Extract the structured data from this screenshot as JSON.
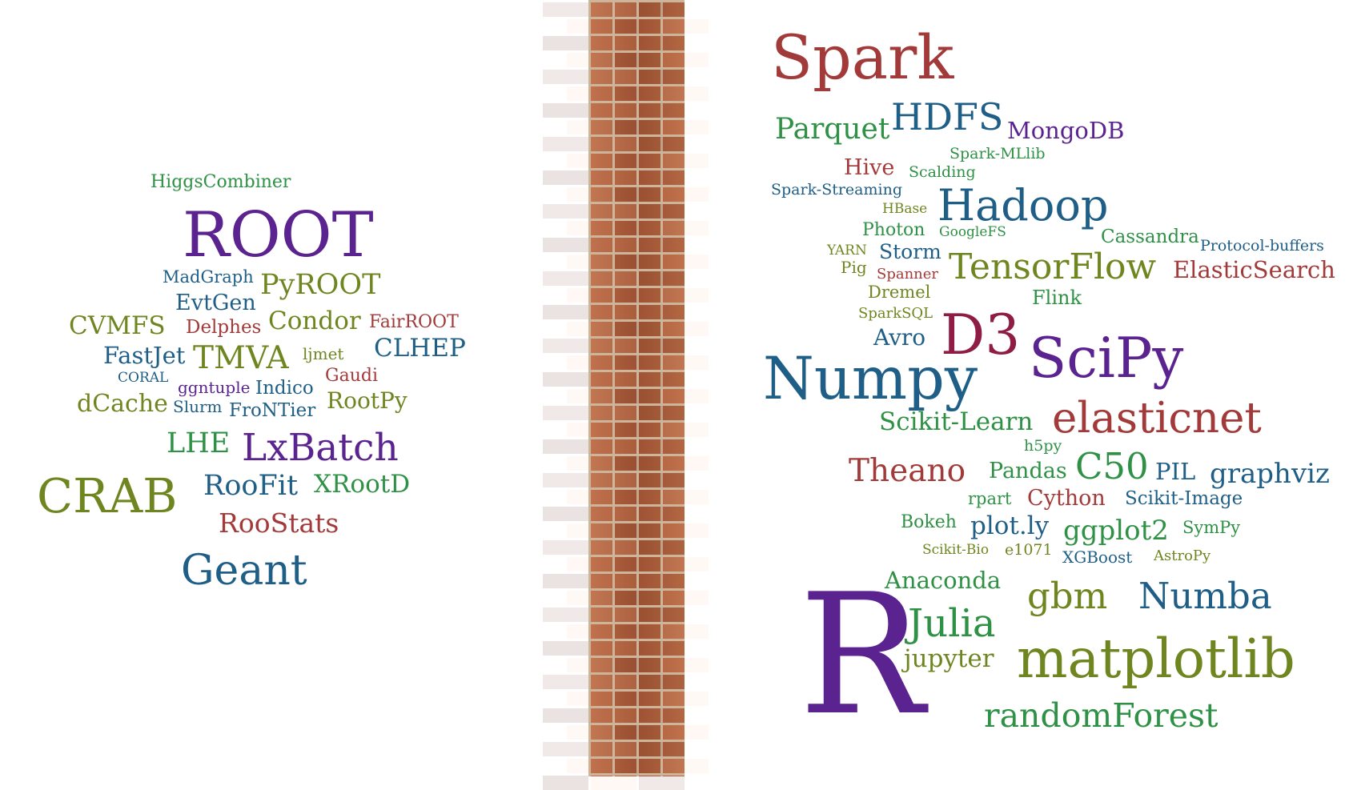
{
  "left_words": [
    "HiggsCombiner",
    "ROOT",
    "MadGraph",
    "PyROOT",
    "EvtGen",
    "CVMFS",
    "Delphes",
    "Condor",
    "FairROOT",
    "FastJet",
    "TMVA",
    "ljmet",
    "CLHEP",
    "CORAL",
    "ggntuple",
    "Indico",
    "Gaudi",
    "dCache",
    "Slurm",
    "FroNTier",
    "RootPy",
    "LHE",
    "LxBatch",
    "CRAB",
    "RooFit",
    "XRootD",
    "RooStats",
    "Geant"
  ],
  "right_words": [
    "Spark",
    "Parquet",
    "HDFS",
    "MongoDB",
    "Spark-MLlib",
    "Hive",
    "Scalding",
    "Spark-Streaming",
    "HBase",
    "Hadoop",
    "Photon",
    "GoogleFS",
    "Cassandra",
    "Protocol-buffers",
    "YARN",
    "Storm",
    "Pig",
    "Spanner",
    "TensorFlow",
    "ElasticSearch",
    "Dremel",
    "Flink",
    "SparkSQL",
    "Avro",
    "D3",
    "Numpy",
    "SciPy",
    "Scikit-Learn",
    "elasticnet",
    "h5py",
    "Theano",
    "Pandas",
    "C50",
    "PIL",
    "graphviz",
    "rpart",
    "Cython",
    "Scikit-Image",
    "Bokeh",
    "plot.ly",
    "ggplot2",
    "SymPy",
    "Scikit-Bio",
    "e1071",
    "XGBoost",
    "AstroPy",
    "Anaconda",
    "gbm",
    "Numba",
    "R",
    "Julia",
    "jupyter",
    "matplotlib",
    "randomForest"
  ],
  "colors": {
    "green": "#2e9145",
    "purple": "#5b2390",
    "blue": "#1f5f87",
    "olive": "#6f8620",
    "red": "#a33a3a",
    "maroon": "#8e1c45",
    "brick": "#b0623f",
    "mortar": "#cdb59b"
  }
}
